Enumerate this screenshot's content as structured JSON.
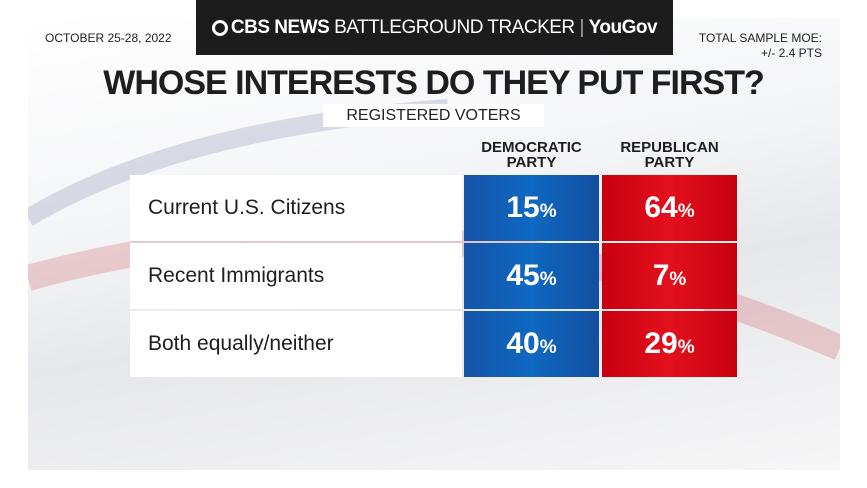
{
  "header": {
    "brand_bold": "CBS NEWS",
    "brand_light": "BATTLEGROUND TRACKER",
    "partner": "YouGov"
  },
  "date": "OCTOBER 25-28, 2022",
  "moe": {
    "line1": "TOTAL SAMPLE MOE:",
    "line2": "+/- 2.4 PTS"
  },
  "colors": {
    "democratic": "#0f5fb5",
    "republican": "#d90a16"
  },
  "chart_data": {
    "type": "table",
    "title": "WHOSE INTERESTS DO THEY PUT FIRST?",
    "subtitle": "REGISTERED VOTERS",
    "columns": [
      "DEMOCRATIC PARTY",
      "REPUBLICAN PARTY"
    ],
    "rows": [
      {
        "label": "Current U.S. Citizens",
        "values": [
          "15",
          "64"
        ]
      },
      {
        "label": "Recent Immigrants",
        "values": [
          "45",
          "7"
        ]
      },
      {
        "label": "Both equally/neither",
        "values": [
          "40",
          "29"
        ]
      }
    ],
    "unit": "%"
  }
}
